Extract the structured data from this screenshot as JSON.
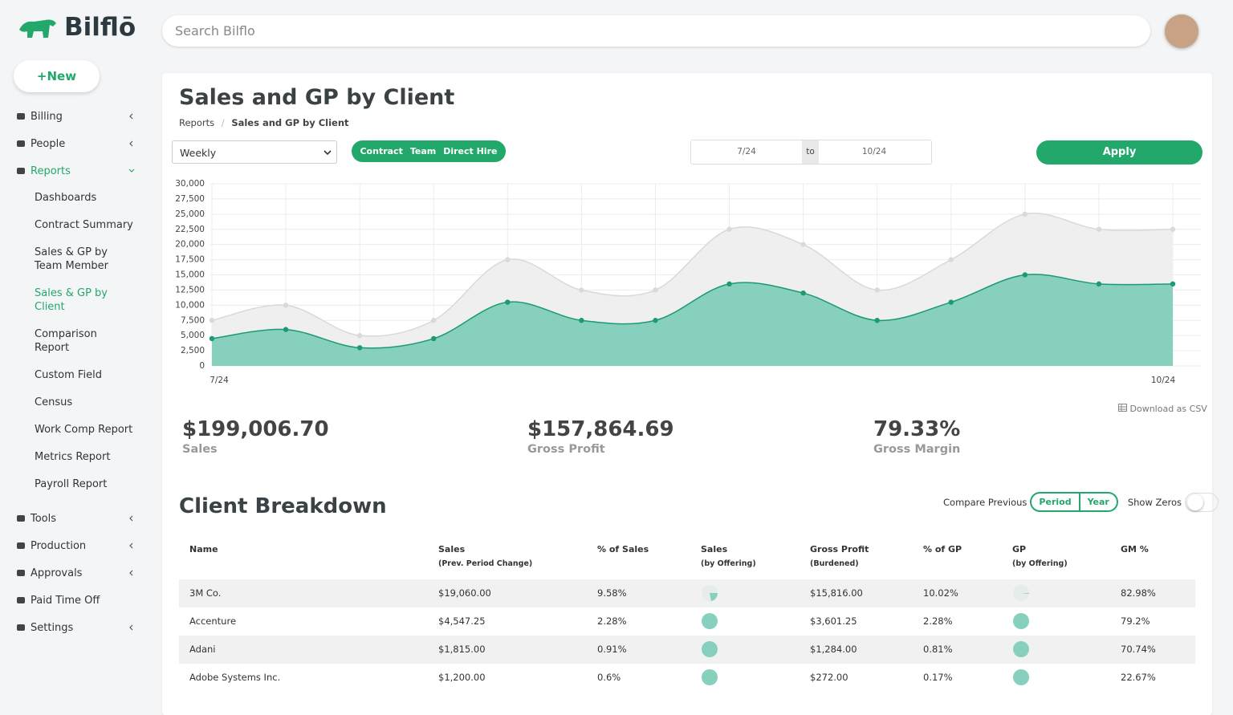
{
  "brand": "Bilflō",
  "search_placeholder": "Search Bilflo",
  "new_button": "+New",
  "sidebar": [
    {
      "label": "Billing",
      "collapsible": true
    },
    {
      "label": "People",
      "collapsible": true
    },
    {
      "label": "Reports",
      "collapsible": true,
      "open": true,
      "children": [
        {
          "label": "Dashboards"
        },
        {
          "label": "Contract Summary"
        },
        {
          "label": "Sales & GP by Team Member"
        },
        {
          "label": "Sales & GP by Client",
          "active": true
        },
        {
          "label": "Comparison Report"
        },
        {
          "label": "Custom Field"
        },
        {
          "label": "Census"
        },
        {
          "label": "Work Comp Report"
        },
        {
          "label": "Metrics Report"
        },
        {
          "label": "Payroll Report"
        }
      ]
    },
    {
      "label": "Tools",
      "collapsible": true
    },
    {
      "label": "Production",
      "collapsible": true
    },
    {
      "label": "Approvals",
      "collapsible": true
    },
    {
      "label": "Paid Time Off"
    },
    {
      "label": "Settings",
      "collapsible": true
    }
  ],
  "page": {
    "title": "Sales and GP by Client",
    "breadcrumb": [
      "Reports",
      "Sales and GP by Client"
    ]
  },
  "filters": {
    "period": "Weekly",
    "types": [
      "Contract",
      "Team",
      "Direct Hire"
    ],
    "from": "7/24",
    "to_label": "to",
    "to": "10/24",
    "apply": "Apply"
  },
  "chart_data": {
    "type": "area",
    "categories": [
      "7/24",
      null,
      null,
      null,
      null,
      null,
      null,
      null,
      null,
      null,
      null,
      null,
      null,
      "10/24"
    ],
    "series": [
      {
        "color": "#d9d9d9",
        "fill": "#efefef",
        "values": [
          7500,
          10000,
          5000,
          7500,
          17500,
          12500,
          12500,
          22500,
          20000,
          12500,
          17500,
          25000,
          22500,
          22500
        ]
      },
      {
        "color": "#1c9a72",
        "fill": "#86d0bd",
        "values": [
          4500,
          6000,
          3000,
          4500,
          10500,
          7500,
          7500,
          13500,
          12000,
          7500,
          10500,
          15000,
          13500,
          13500
        ]
      }
    ],
    "ylim": [
      0,
      30000
    ],
    "yticks": [
      0,
      {
        "value": 2500,
        "label": "2,500"
      },
      {
        "value": 5000,
        "label": "5,000"
      },
      {
        "value": 7500,
        "label": "7,500"
      },
      {
        "value": 10000,
        "label": "10,000"
      },
      {
        "value": 12500,
        "label": "12,500"
      },
      {
        "value": 15000,
        "label": "15,000"
      },
      {
        "value": 17500,
        "label": "17,500"
      },
      {
        "value": 20000,
        "label": "20,000"
      },
      {
        "value": 22500,
        "label": "22,500"
      },
      {
        "value": 25000,
        "label": "25,000"
      },
      {
        "value": 27500,
        "label": "27,500"
      },
      {
        "value": 30000,
        "label": "30,000"
      }
    ],
    "grid": true
  },
  "download": "Download as CSV",
  "stats": [
    {
      "value": "$199,006.70",
      "label": "Sales"
    },
    {
      "value": "$157,864.69",
      "label": "Gross Profit"
    },
    {
      "value": "79.33%",
      "label": "Gross Margin"
    }
  ],
  "breakdown": {
    "title": "Client Breakdown",
    "compare_label": "Compare Previous",
    "compare_options": [
      "Period",
      "Year"
    ],
    "show_zeros": "Show Zeros",
    "columns": [
      {
        "label": "Name"
      },
      {
        "label": "Sales",
        "sub": "(Prev. Period Change)"
      },
      {
        "label": "% of Sales"
      },
      {
        "label": "Sales",
        "sub": "(by Offering)"
      },
      {
        "label": "Gross Profit",
        "sub": "(Burdened)"
      },
      {
        "label": "% of GP"
      },
      {
        "label": "GP",
        "sub": "(by Offering)"
      },
      {
        "label": "GM %"
      }
    ],
    "rows": [
      [
        "3M Co.",
        "$19,060.00",
        "9.58%",
        "$15,816.00",
        "10.02%",
        "82.98%"
      ],
      [
        "Accenture",
        "$4,547.25",
        "2.28%",
        "$3,601.25",
        "2.28%",
        "79.2%"
      ],
      [
        "Adani",
        "$1,815.00",
        "0.91%",
        "$1,284.00",
        "0.81%",
        "70.74%"
      ],
      [
        "Adobe Systems Inc.",
        "$1,200.00",
        "0.6%",
        "$272.00",
        "0.17%",
        "22.67%"
      ]
    ]
  }
}
